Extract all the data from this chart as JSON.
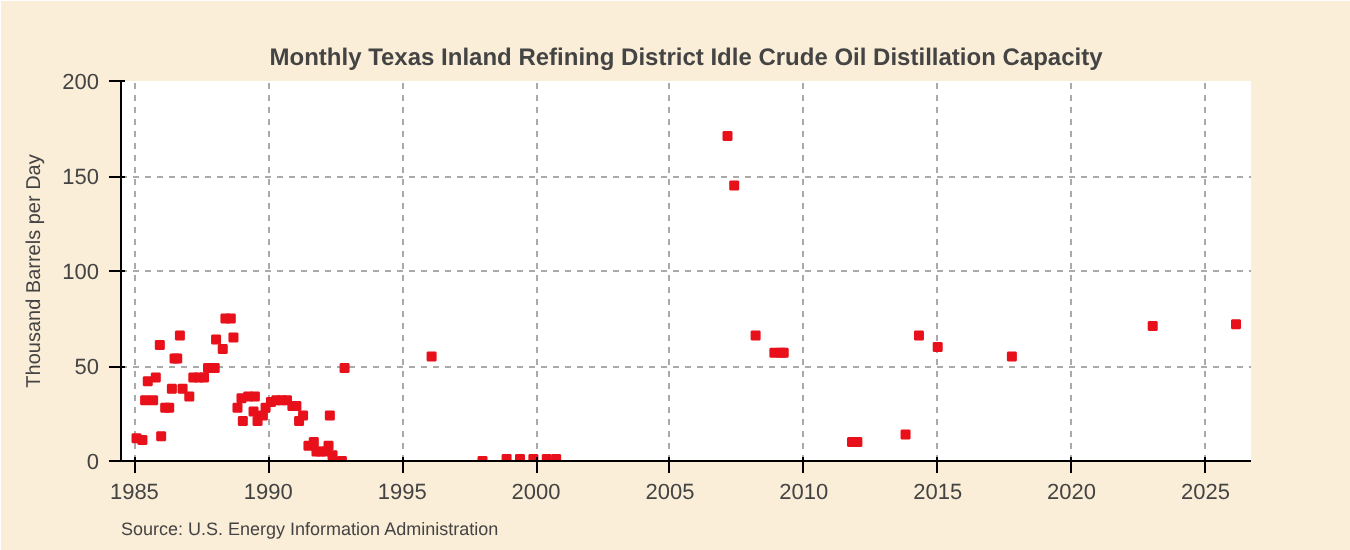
{
  "chart_data": {
    "type": "scatter",
    "title": "Monthly Texas Inland Refining District Idle Crude Oil Distillation Capacity",
    "ylabel": "Thousand Barrels per Day",
    "annotations": [
      "Source: U.S. Energy Information Administration"
    ],
    "x": [
      1985.08,
      1985.3,
      1985.5,
      1985.4,
      1985.7,
      1985.8,
      1985.95,
      1986.0,
      1986.15,
      1986.3,
      1986.4,
      1986.5,
      1986.6,
      1986.7,
      1986.8,
      1987.05,
      1987.2,
      1987.4,
      1987.6,
      1987.75,
      1988.0,
      1988.05,
      1988.3,
      1988.4,
      1988.6,
      1988.7,
      1988.85,
      1989.0,
      1989.05,
      1989.25,
      1989.5,
      1989.45,
      1989.6,
      1989.8,
      1989.9,
      1990.1,
      1990.3,
      1990.5,
      1990.7,
      1990.9,
      1991.05,
      1991.15,
      1991.3,
      1991.5,
      1991.7,
      1991.8,
      1991.95,
      1992.15,
      1992.25,
      1992.3,
      1992.4,
      1992.75,
      1992.85,
      1996.1,
      1998.0,
      1998.9,
      1999.4,
      1999.9,
      2000.4,
      2000.75,
      2007.15,
      2007.4,
      2008.2,
      2008.9,
      2009.15,
      2009.25,
      2011.8,
      2012.0,
      2013.8,
      2014.3,
      2015.0,
      2017.77,
      2023.03,
      2026.14
    ],
    "values": [
      12,
      11,
      42,
      32,
      32,
      44,
      61,
      13,
      28,
      28,
      38,
      54,
      54,
      66,
      38,
      34,
      44,
      44,
      44,
      49,
      49,
      64,
      59,
      75,
      75,
      65,
      28,
      33,
      21,
      34,
      34,
      26,
      21,
      24,
      28,
      31,
      32,
      32,
      32,
      29,
      29,
      21,
      24,
      8,
      10,
      5,
      5,
      5,
      8,
      24,
      3,
      0,
      49,
      55,
      0,
      1,
      1,
      1,
      1,
      1,
      171,
      145,
      66,
      57,
      57,
      57,
      10,
      10,
      14,
      66,
      60,
      55,
      71,
      72
    ],
    "color": "#e8101a",
    "marker": "square",
    "xlim": [
      1984.5,
      2026.7
    ],
    "ylim": [
      0,
      200
    ],
    "xticks": [
      1985,
      1990,
      1995,
      2000,
      2005,
      2010,
      2015,
      2020,
      2025
    ],
    "yticks": [
      0,
      50,
      100,
      150,
      200
    ],
    "grid": true
  }
}
